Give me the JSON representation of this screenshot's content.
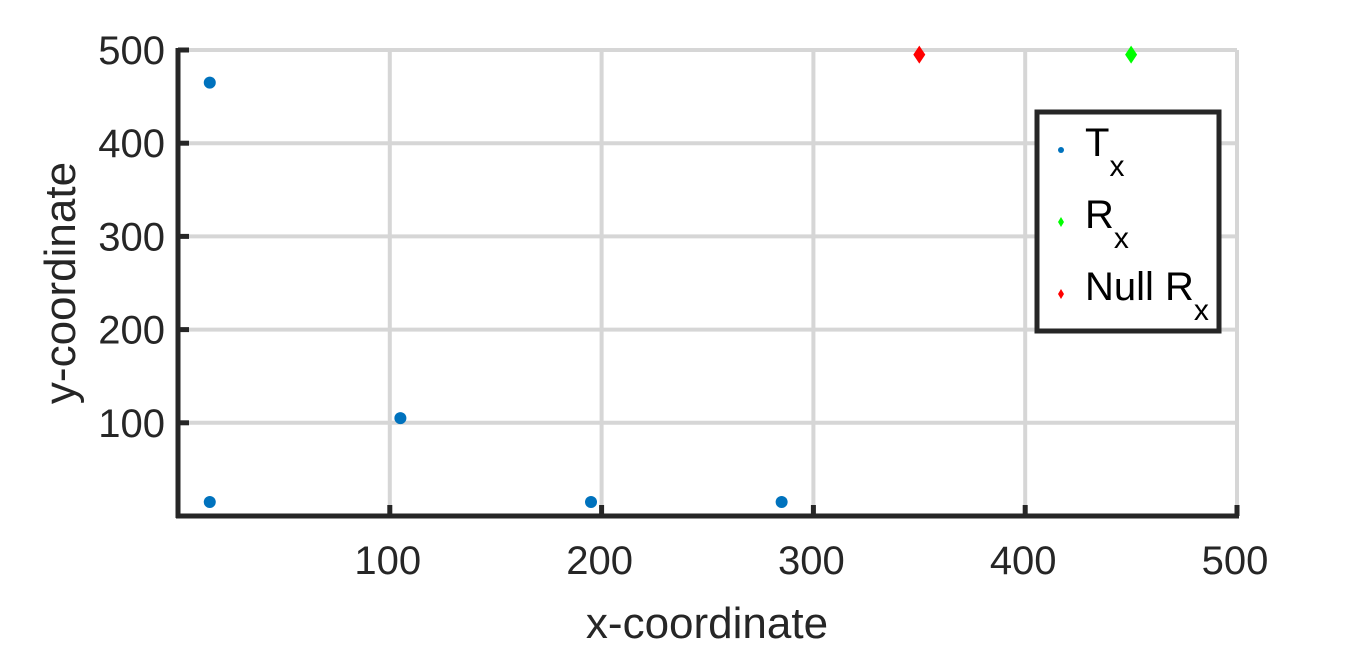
{
  "chart_data": {
    "type": "scatter",
    "title": "",
    "xlabel": "x-coordinate",
    "ylabel": "y-coordinate",
    "xlim": [
      0,
      500
    ],
    "ylim": [
      0,
      500
    ],
    "xticks": [
      100,
      200,
      300,
      400,
      500
    ],
    "yticks": [
      100,
      200,
      300,
      400,
      500
    ],
    "grid": true,
    "legend_position": "top-right",
    "series": [
      {
        "name": "Tx",
        "name_main": "T",
        "name_sub": "x",
        "marker": "dot",
        "color": "#0072BD",
        "points": [
          [
            15,
            465
          ],
          [
            15,
            15
          ],
          [
            105,
            105
          ],
          [
            195,
            15
          ],
          [
            285,
            15
          ]
        ]
      },
      {
        "name": "Rx",
        "name_main": "R",
        "name_sub": "x",
        "marker": "diamond",
        "color": "#00FF00",
        "points": [
          [
            450,
            495
          ]
        ]
      },
      {
        "name": "Null Rx",
        "name_main": "Null R",
        "name_sub": "x",
        "marker": "diamond",
        "color": "#FF0000",
        "points": [
          [
            350,
            495
          ]
        ]
      }
    ]
  }
}
